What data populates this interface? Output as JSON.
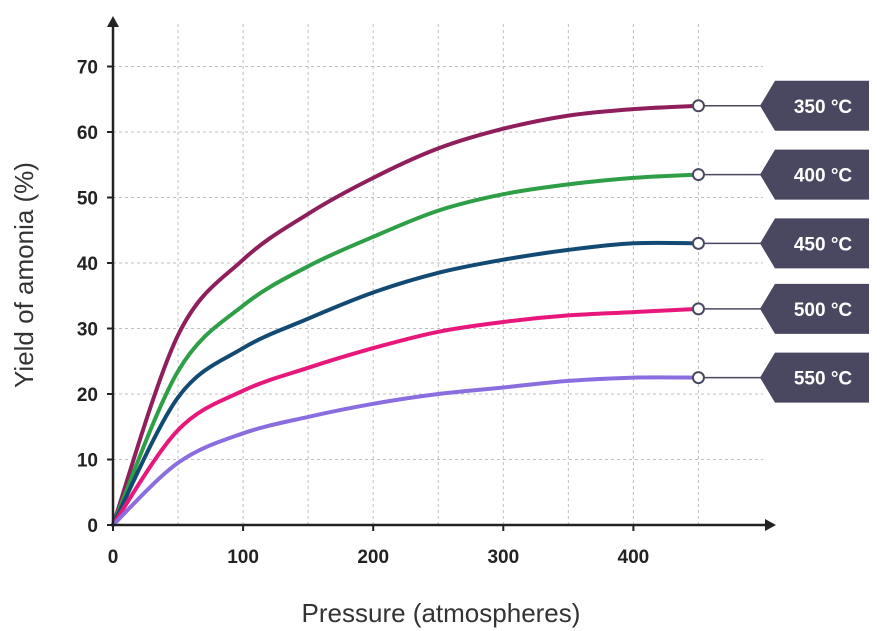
{
  "chart_data": {
    "type": "line",
    "title": "",
    "xlabel": "Pressure (atmospheres)",
    "ylabel": "Yield of amonia (%)",
    "xlim": [
      0,
      500
    ],
    "ylim": [
      0,
      70
    ],
    "x_ticks": [
      0,
      100,
      200,
      300,
      400
    ],
    "y_ticks": [
      0,
      10,
      20,
      30,
      40,
      50,
      60,
      70
    ],
    "x_tick_labels": [
      "0",
      "100",
      "200",
      "300",
      "400"
    ],
    "y_tick_labels": [
      "0",
      "10",
      "20",
      "30",
      "40",
      "50",
      "60",
      "70"
    ],
    "grid": true,
    "legend": "end-of-line labels, right",
    "x": [
      0,
      50,
      100,
      150,
      200,
      250,
      300,
      350,
      400,
      450
    ],
    "series": [
      {
        "name": "350 °C",
        "color": "#8e1f5c",
        "values": [
          0,
          29,
          40.5,
          47.5,
          53,
          57.5,
          60.5,
          62.5,
          63.5,
          64
        ]
      },
      {
        "name": "400 °C",
        "color": "#2e9e47",
        "values": [
          0,
          23.5,
          33.5,
          39.5,
          44,
          48,
          50.5,
          52,
          53,
          53.5
        ]
      },
      {
        "name": "450 °C",
        "color": "#124a73",
        "values": [
          0,
          19.5,
          27,
          31.5,
          35.5,
          38.5,
          40.5,
          42,
          43,
          43
        ]
      },
      {
        "name": "500 °C",
        "color": "#e8177b",
        "values": [
          0,
          14.5,
          20.5,
          24,
          27,
          29.5,
          31,
          32,
          32.5,
          33
        ]
      },
      {
        "name": "550 °C",
        "color": "#8a6ee0",
        "values": [
          0,
          9.5,
          14,
          16.5,
          18.5,
          20,
          21,
          22,
          22.5,
          22.5
        ]
      }
    ],
    "tag_color": "#4a4861"
  }
}
